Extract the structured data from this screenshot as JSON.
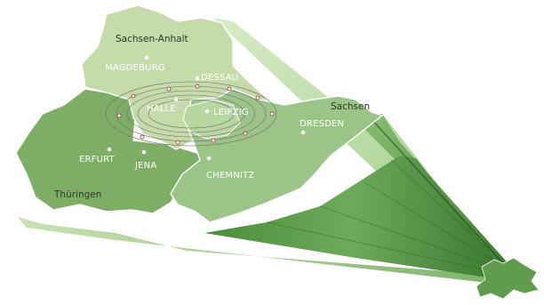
{
  "regions": {
    "sachsen_anhalt": "Sachsen-Anhalt",
    "sachsen": "Sachsen",
    "thueringen": "Thüringen"
  },
  "cities": {
    "magdeburg": "MAGDEBURG",
    "dessau": "DESSAU",
    "halle": "HALLE",
    "leipzig": "LEIPZIG",
    "dresden": "DRESDEN",
    "erfurt": "ERFURT",
    "jena": "JENA",
    "chemnitz": "CHEMNITZ"
  },
  "colors": {
    "sachsen_anhalt_fill": "#c5dba9",
    "sachsen_fill": "#9cc489",
    "thueringen_fill": "#7eae66",
    "extrusion_light": "#cfe6bc",
    "extrusion_dark": "#3f7f33",
    "orbit_line": "#6e6e6e",
    "orbit_marker": "#b04848"
  }
}
